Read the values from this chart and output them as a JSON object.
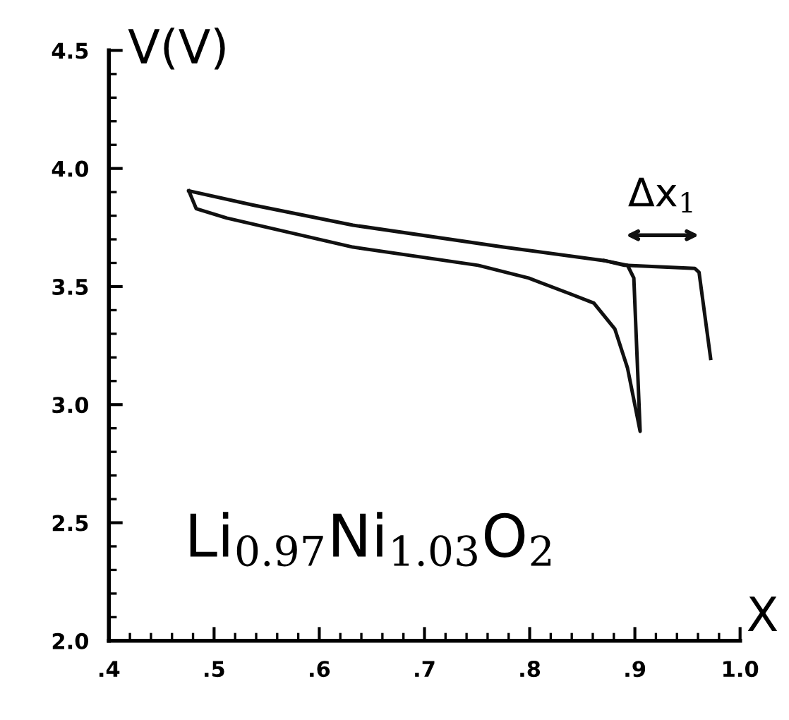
{
  "chart_data": {
    "type": "line",
    "xlabel": "X",
    "ylabel": "V(V)",
    "xlim": [
      0.4,
      1.0
    ],
    "ylim": [
      2.0,
      4.5
    ],
    "xticks": [
      {
        "value": 0.4,
        "label": ".4"
      },
      {
        "value": 0.5,
        "label": ".5"
      },
      {
        "value": 0.6,
        "label": ".6"
      },
      {
        "value": 0.7,
        "label": ".7"
      },
      {
        "value": 0.8,
        "label": ".8"
      },
      {
        "value": 0.9,
        "label": ".9"
      },
      {
        "value": 1.0,
        "label": "1.0"
      }
    ],
    "yticks": [
      {
        "value": 2.0,
        "label": "2.0"
      },
      {
        "value": 2.5,
        "label": "2.5"
      },
      {
        "value": 3.0,
        "label": "3.0"
      },
      {
        "value": 3.5,
        "label": "3.5"
      },
      {
        "value": 4.0,
        "label": "4.0"
      },
      {
        "value": 4.5,
        "label": "4.5"
      }
    ],
    "series": [
      {
        "color": "#111111",
        "x": [
          0.476,
          0.537,
          0.632,
          0.775,
          0.871,
          0.89,
          0.957,
          0.961,
          0.972
        ],
        "values": [
          3.905,
          3.845,
          3.76,
          3.667,
          3.61,
          3.59,
          3.577,
          3.56,
          3.196
        ]
      },
      {
        "color": "#111111",
        "x": [
          0.476,
          0.483,
          0.512,
          0.632,
          0.751,
          0.799,
          0.838,
          0.861,
          0.881,
          0.893,
          0.905,
          0.899,
          0.893,
          0.871
        ],
        "values": [
          3.905,
          3.83,
          3.79,
          3.667,
          3.59,
          3.536,
          3.47,
          3.43,
          3.32,
          3.155,
          2.887,
          3.536,
          3.59,
          3.61
        ]
      }
    ],
    "annotations": [
      "Δx$_{1}$",
      "Li$_{0.97}$Ni$_{1.03}$O$_{2}$"
    ],
    "grid": false,
    "legend": false,
    "marker": "none",
    "line_style": "solid"
  }
}
